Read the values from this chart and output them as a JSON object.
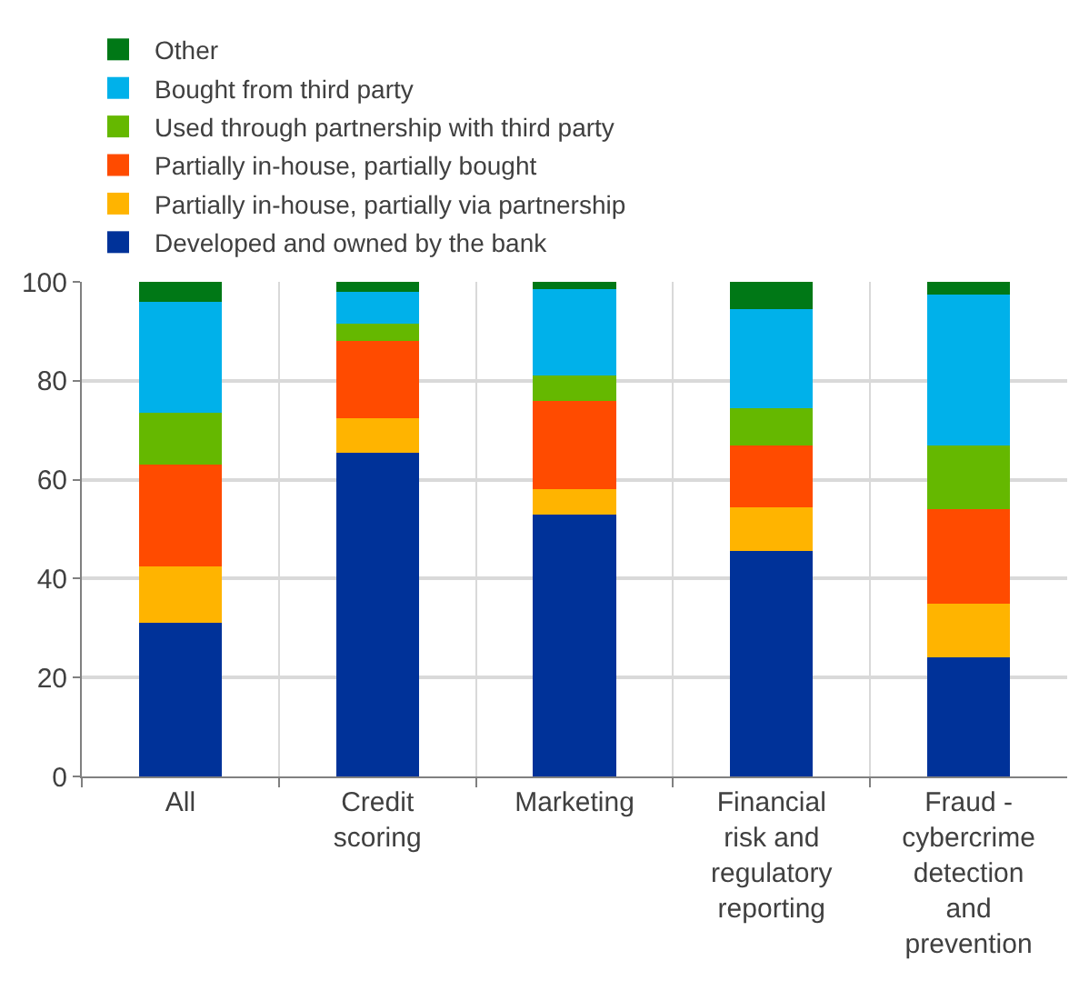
{
  "chart_data": {
    "type": "bar",
    "stacked": true,
    "categories": [
      "All",
      "Credit scoring",
      "Marketing",
      "Financial risk and regulatory reporting",
      "Fraud - cybercrime detection and prevention"
    ],
    "series": [
      {
        "name": "Developed and owned by the bank",
        "color": "#003299",
        "values": [
          31,
          65.5,
          53,
          45.5,
          24
        ]
      },
      {
        "name": "Partially in-house, partially via partnership",
        "color": "#ffb400",
        "values": [
          11.5,
          7,
          5,
          9,
          11
        ]
      },
      {
        "name": "Partially in-house, partially bought",
        "color": "#ff4b00",
        "values": [
          20.5,
          15.5,
          18,
          12.5,
          19
        ]
      },
      {
        "name": "Used through partnership with third party",
        "color": "#65b800",
        "values": [
          10.5,
          3.5,
          5,
          7.5,
          13
        ]
      },
      {
        "name": "Bought from third party",
        "color": "#00b1ea",
        "values": [
          22.5,
          6.5,
          17.5,
          20,
          30.5
        ]
      },
      {
        "name": "Other",
        "color": "#007816",
        "values": [
          4,
          2,
          1.5,
          5.5,
          2.5
        ]
      }
    ],
    "ylim": [
      0,
      100
    ],
    "yticks": [
      0,
      20,
      40,
      60,
      80,
      100
    ],
    "grid": true,
    "legend": "top left"
  }
}
